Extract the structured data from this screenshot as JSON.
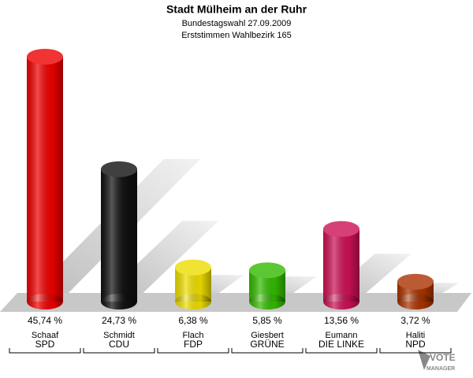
{
  "chart_data": {
    "type": "cylinder_bar",
    "title": "Stadt Mülheim an der Ruhr",
    "subtitle": [
      "Bundestagswahl 27.09.2009",
      "Erststimmen Wahlbezirk 165"
    ],
    "categories": [
      "Schaaf",
      "Schmidt",
      "Flach",
      "Giesbert",
      "Eumann",
      "Haliti"
    ],
    "parties": [
      "SPD",
      "CDU",
      "FDP",
      "GRÜNE",
      "DIE LINKE",
      "NPD"
    ],
    "values": [
      45.74,
      24.73,
      6.38,
      5.85,
      13.56,
      3.72
    ],
    "value_labels": [
      "45,74 %",
      "24,73 %",
      "6,38 %",
      "5,85 %",
      "13,56 %",
      "3,72 %"
    ],
    "colors": [
      "#ee0000",
      "#111111",
      "#eedd00",
      "#33bb00",
      "#cc1155",
      "#aa3300"
    ]
  },
  "logo": {
    "text": "VOTE",
    "subtext": "MANAGER"
  }
}
